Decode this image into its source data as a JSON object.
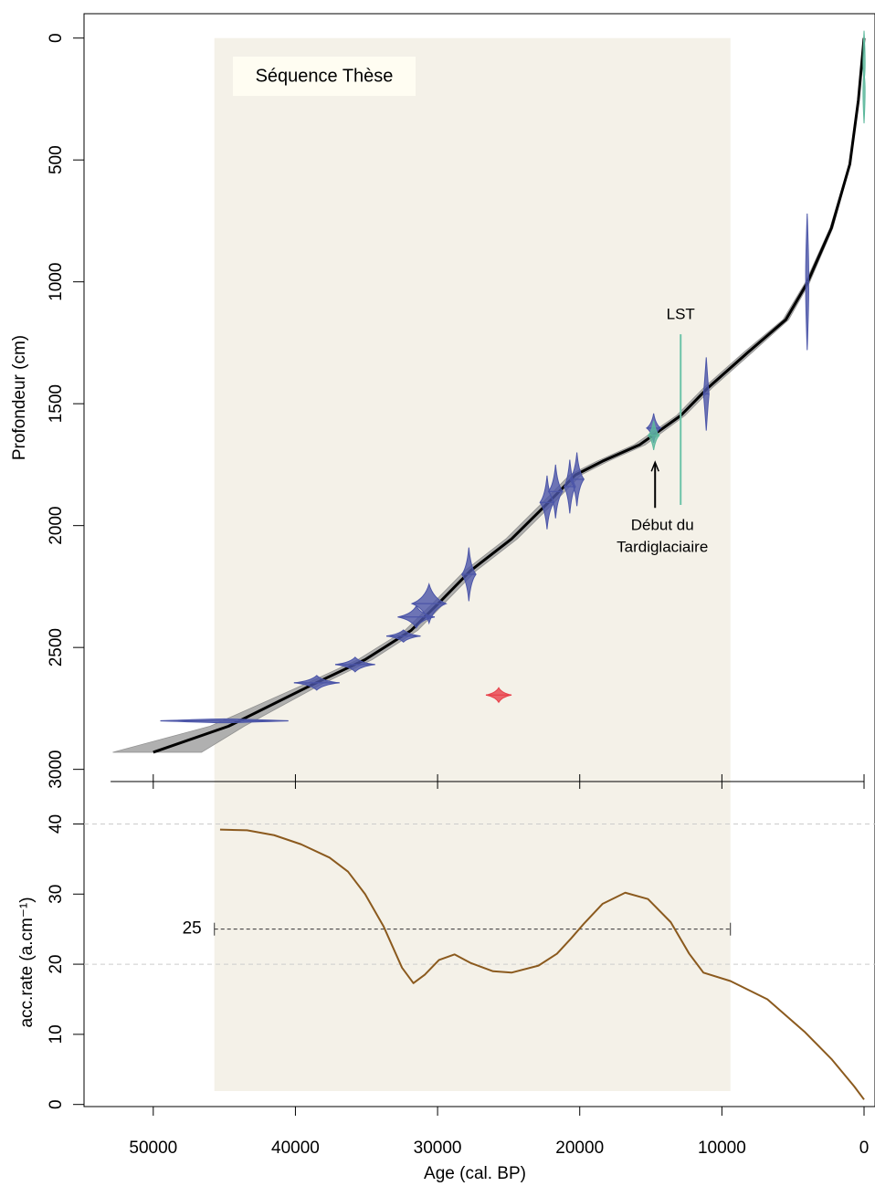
{
  "chart_data": [
    {
      "type": "age_depth",
      "ylabel": "Profondeur (cm)",
      "xlim": [
        54870,
        -770
      ],
      "ylim": [
        3050,
        -100
      ],
      "yticks": [
        0,
        500,
        1000,
        1500,
        2000,
        2500,
        3000
      ],
      "sequence": {
        "label": "Séquence Thèse",
        "age_range": [
          45700,
          9400
        ],
        "color": "#f4f1e8"
      },
      "model": {
        "color": "#000000",
        "band_color": "#a8a8a8",
        "depth": [
          2930,
          2823,
          2655,
          2550,
          2430,
          2317,
          2186,
          2055,
          1905,
          1792,
          1736,
          1669,
          1549,
          1436,
          1286,
          1155,
          1005,
          780,
          517,
          255,
          0
        ],
        "age": [
          50000,
          44700,
          38900,
          35100,
          31860,
          29900,
          27700,
          24800,
          22200,
          20300,
          18400,
          15800,
          12900,
          11000,
          8100,
          5500,
          4000,
          2300,
          1000,
          400,
          0
        ],
        "age_lower": [
          46600,
          43600,
          38300,
          34600,
          31400,
          29500,
          27300,
          24400,
          21800,
          19900,
          18000,
          15400,
          12600,
          10700,
          7800,
          5300,
          3850,
          2200,
          950,
          380,
          0
        ],
        "age_upper": [
          52850,
          46000,
          39500,
          35600,
          32300,
          30300,
          28100,
          25200,
          22600,
          20700,
          18800,
          16200,
          13200,
          11300,
          8400,
          5700,
          4150,
          2400,
          1050,
          420,
          0
        ]
      },
      "dates": [
        {
          "age": 45000,
          "depth": 2801,
          "age_err": 4500,
          "depth_err": 8,
          "color": "#4b55a8"
        },
        {
          "age": 38500,
          "depth": 2645,
          "age_err": 1600,
          "depth_err": 30,
          "color": "#4b55a8"
        },
        {
          "age": 35800,
          "depth": 2570,
          "age_err": 1400,
          "depth_err": 30,
          "color": "#4b55a8"
        },
        {
          "age": 32400,
          "depth": 2453,
          "age_err": 1200,
          "depth_err": 25,
          "color": "#4b55a8"
        },
        {
          "age": 31500,
          "depth": 2375,
          "age_err": 1300,
          "depth_err": 45,
          "color": "#4b55a8"
        },
        {
          "age": 30600,
          "depth": 2320,
          "age_err": 1200,
          "depth_err": 80,
          "color": "#4b55a8"
        },
        {
          "age": 27800,
          "depth": 2200,
          "age_err": 500,
          "depth_err": 110,
          "color": "#4b55a8"
        },
        {
          "age": 22300,
          "depth": 1905,
          "age_err": 500,
          "depth_err": 110,
          "color": "#4b55a8"
        },
        {
          "age": 21700,
          "depth": 1860,
          "age_err": 500,
          "depth_err": 110,
          "color": "#4b55a8"
        },
        {
          "age": 20700,
          "depth": 1840,
          "age_err": 400,
          "depth_err": 110,
          "color": "#4b55a8"
        },
        {
          "age": 20200,
          "depth": 1810,
          "age_err": 500,
          "depth_err": 110,
          "color": "#4b55a8"
        },
        {
          "age": 14800,
          "depth": 1600,
          "age_err": 500,
          "depth_err": 60,
          "color": "#4b55a8"
        },
        {
          "age": 14800,
          "depth": 1630,
          "age_err": 400,
          "depth_err": 60,
          "color": "#5cb89c"
        },
        {
          "age": 11100,
          "depth": 1460,
          "age_err": 200,
          "depth_err": 150,
          "color": "#4b55a8"
        },
        {
          "age": 4000,
          "depth": 1000,
          "age_err": 100,
          "depth_err": 280,
          "color": "#4b55a8"
        },
        {
          "age": 25700,
          "depth": 2695,
          "age_err": 900,
          "depth_err": 30,
          "color": "#e8414a"
        },
        {
          "age": 0,
          "depth": 160,
          "age_err": 30,
          "depth_err": 190,
          "color": "#5cb89c"
        }
      ],
      "lst": {
        "label": "LST",
        "age": 12900,
        "depth_range": [
          1215,
          1915
        ],
        "color": "#6cc3a8"
      },
      "annotation": {
        "lines": [
          "Début du",
          "Tardiglaciaire"
        ],
        "age": 14700,
        "depth": 1740
      }
    },
    {
      "type": "line",
      "xlabel": "Age (cal. BP)",
      "ylabel": "acc.rate (a.cm⁻¹)",
      "xlim": [
        54870,
        -770
      ],
      "ylim": [
        -0.3,
        46.05
      ],
      "xticks": [
        50000,
        40000,
        30000,
        20000,
        10000,
        0
      ],
      "yticks": [
        0,
        10,
        20,
        30,
        40
      ],
      "grid_values": [
        20,
        40
      ],
      "mean_rate": 25,
      "color": "#8b5a1e",
      "x": [
        45300,
        43400,
        41500,
        39600,
        37600,
        36300,
        35100,
        33800,
        32500,
        31700,
        30900,
        29900,
        28800,
        27700,
        26100,
        24800,
        22900,
        21600,
        20600,
        19700,
        18400,
        16800,
        15200,
        13600,
        12300,
        11300,
        9400,
        6800,
        4200,
        2300,
        700,
        0
      ],
      "values": [
        39.2,
        39.1,
        38.4,
        37.1,
        35.2,
        33.2,
        30.0,
        25.4,
        19.5,
        17.3,
        18.5,
        20.6,
        21.4,
        20.2,
        19.0,
        18.8,
        19.8,
        21.5,
        23.7,
        25.8,
        28.6,
        30.2,
        29.3,
        26.0,
        21.5,
        18.8,
        17.6,
        15.0,
        10.4,
        6.5,
        2.6,
        0.7
      ]
    }
  ]
}
